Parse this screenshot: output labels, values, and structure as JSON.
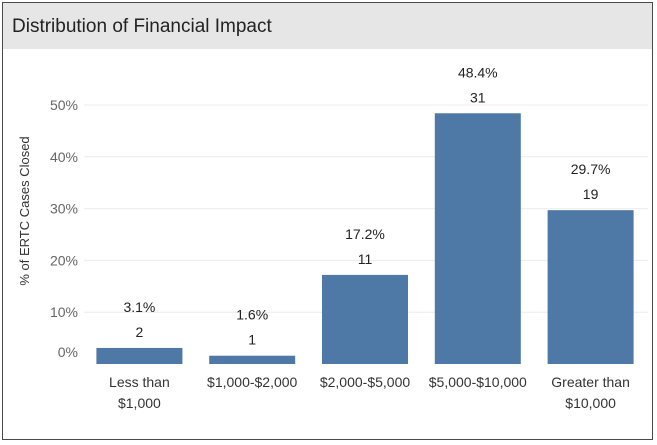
{
  "chart_data": {
    "type": "bar",
    "title": "Distribution of Financial Impact",
    "xlabel": "",
    "ylabel": "% of ERTC Cases Closed",
    "ylim": [
      0,
      55
    ],
    "yticks": [
      0,
      10,
      20,
      30,
      40,
      50
    ],
    "ytick_labels": [
      "0%",
      "10%",
      "20%",
      "30%",
      "40%",
      "50%"
    ],
    "grid": true,
    "colors": {
      "bar": "#4e79a7",
      "grid": "#ececec",
      "header_bg": "#e6e6e6",
      "border": "#4a4a4a"
    },
    "categories": [
      [
        "Less than",
        "$1,000"
      ],
      [
        "$1,000-$2,000"
      ],
      [
        "$2,000-$5,000"
      ],
      [
        "$5,000-$10,000"
      ],
      [
        "Greater than",
        "$10,000"
      ]
    ],
    "values": [
      3.1,
      1.6,
      17.2,
      48.4,
      29.7
    ],
    "percent_labels": [
      "3.1%",
      "1.6%",
      "17.2%",
      "48.4%",
      "29.7%"
    ],
    "counts": [
      "2",
      "1",
      "11",
      "31",
      "19"
    ]
  }
}
